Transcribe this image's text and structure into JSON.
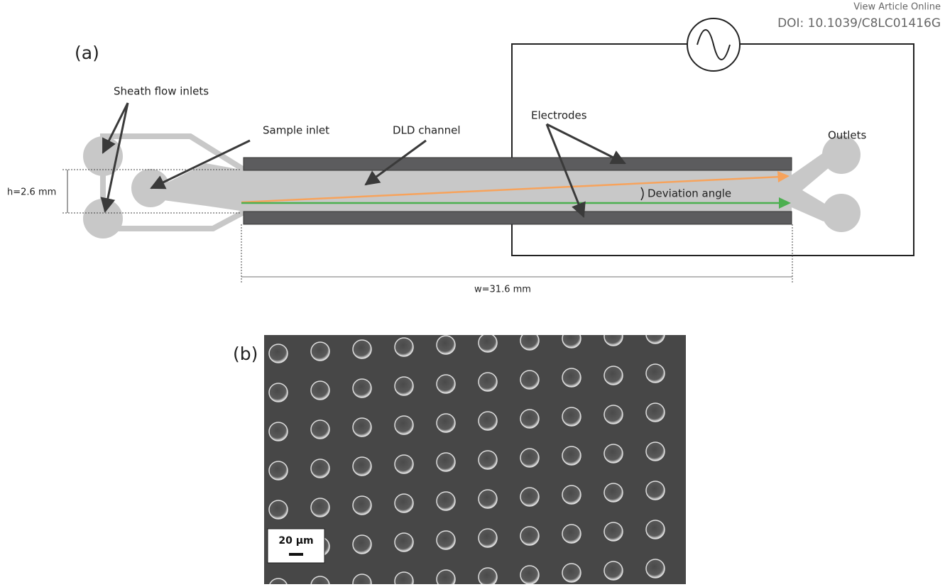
{
  "header": {
    "link": "View Article Online",
    "doi": "DOI: 10.1039/C8LC01416G"
  },
  "panel_a": {
    "label": "(a)",
    "sheath": "Sheath flow inlets",
    "sample": "Sample inlet",
    "channel": "DLD channel",
    "electrodes": "Electrodes",
    "outlets": "Outlets",
    "height": "h=2.6 mm",
    "angle": "Deviation angle",
    "width": "w=31.6 mm"
  },
  "panel_b": {
    "label": "(b)",
    "scale": "20 µm"
  }
}
